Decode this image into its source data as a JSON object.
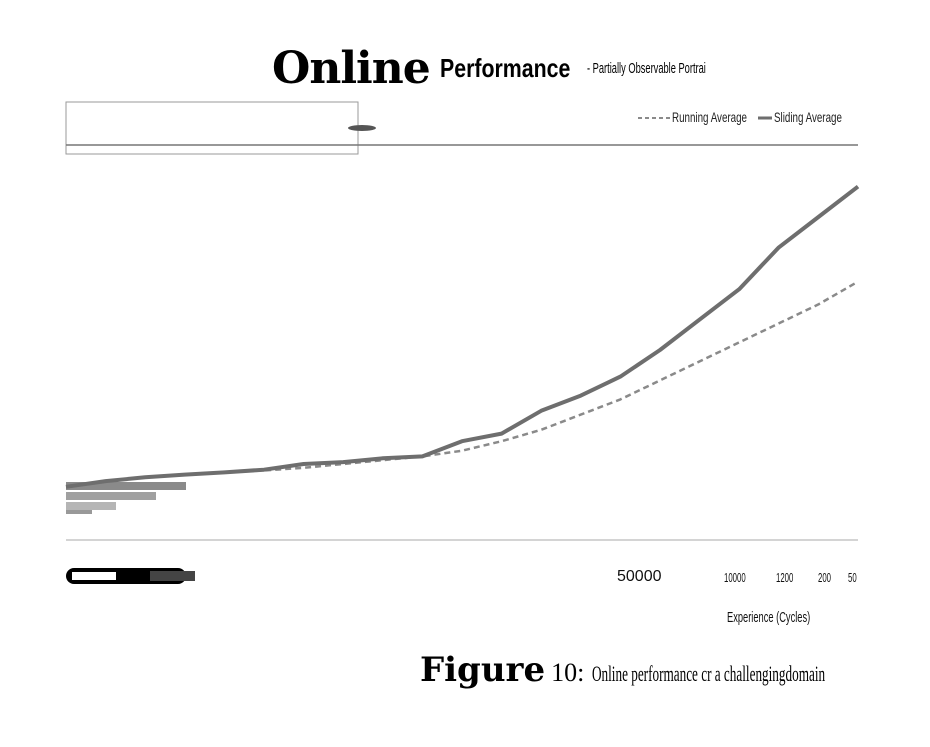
{
  "figure": {
    "title_big": "Online",
    "title_mid": "Performance",
    "title_small": "- Partially Observable Portrai",
    "caption_label": "Figure",
    "caption_number": "10:",
    "caption_text": "Online performance cr a challengingdomain"
  },
  "chart_data": {
    "type": "line",
    "xlabel": "Experience (Cycles)",
    "ylabel": "",
    "x_ticks": [
      "50000",
      "10000",
      "1200",
      "200",
      "50"
    ],
    "series": [
      {
        "name": "Running Average",
        "style": "dashed",
        "color": "#8a8a8a",
        "x": [
          0,
          0.05,
          0.1,
          0.15,
          0.2,
          0.25,
          0.3,
          0.35,
          0.4,
          0.45,
          0.5,
          0.55,
          0.6,
          0.65,
          0.7,
          0.75,
          0.8,
          0.85,
          0.9,
          0.95,
          1.0
        ],
        "y": [
          0.14,
          0.155,
          0.165,
          0.172,
          0.178,
          0.183,
          0.19,
          0.2,
          0.21,
          0.22,
          0.235,
          0.26,
          0.29,
          0.33,
          0.37,
          0.42,
          0.47,
          0.52,
          0.57,
          0.62,
          0.68
        ]
      },
      {
        "name": "Sliding Average",
        "style": "solid",
        "color": "#6e6e6e",
        "x": [
          0,
          0.05,
          0.1,
          0.15,
          0.2,
          0.25,
          0.3,
          0.35,
          0.4,
          0.45,
          0.5,
          0.55,
          0.6,
          0.65,
          0.7,
          0.75,
          0.8,
          0.85,
          0.9,
          0.95,
          1.0
        ],
        "y": [
          0.14,
          0.155,
          0.165,
          0.172,
          0.178,
          0.185,
          0.2,
          0.205,
          0.215,
          0.22,
          0.26,
          0.28,
          0.34,
          0.38,
          0.43,
          0.5,
          0.58,
          0.66,
          0.77,
          0.85,
          0.93
        ]
      }
    ],
    "xlim": [
      0,
      1
    ],
    "ylim": [
      0,
      1
    ],
    "grid": false,
    "legend_position": "top-right"
  }
}
